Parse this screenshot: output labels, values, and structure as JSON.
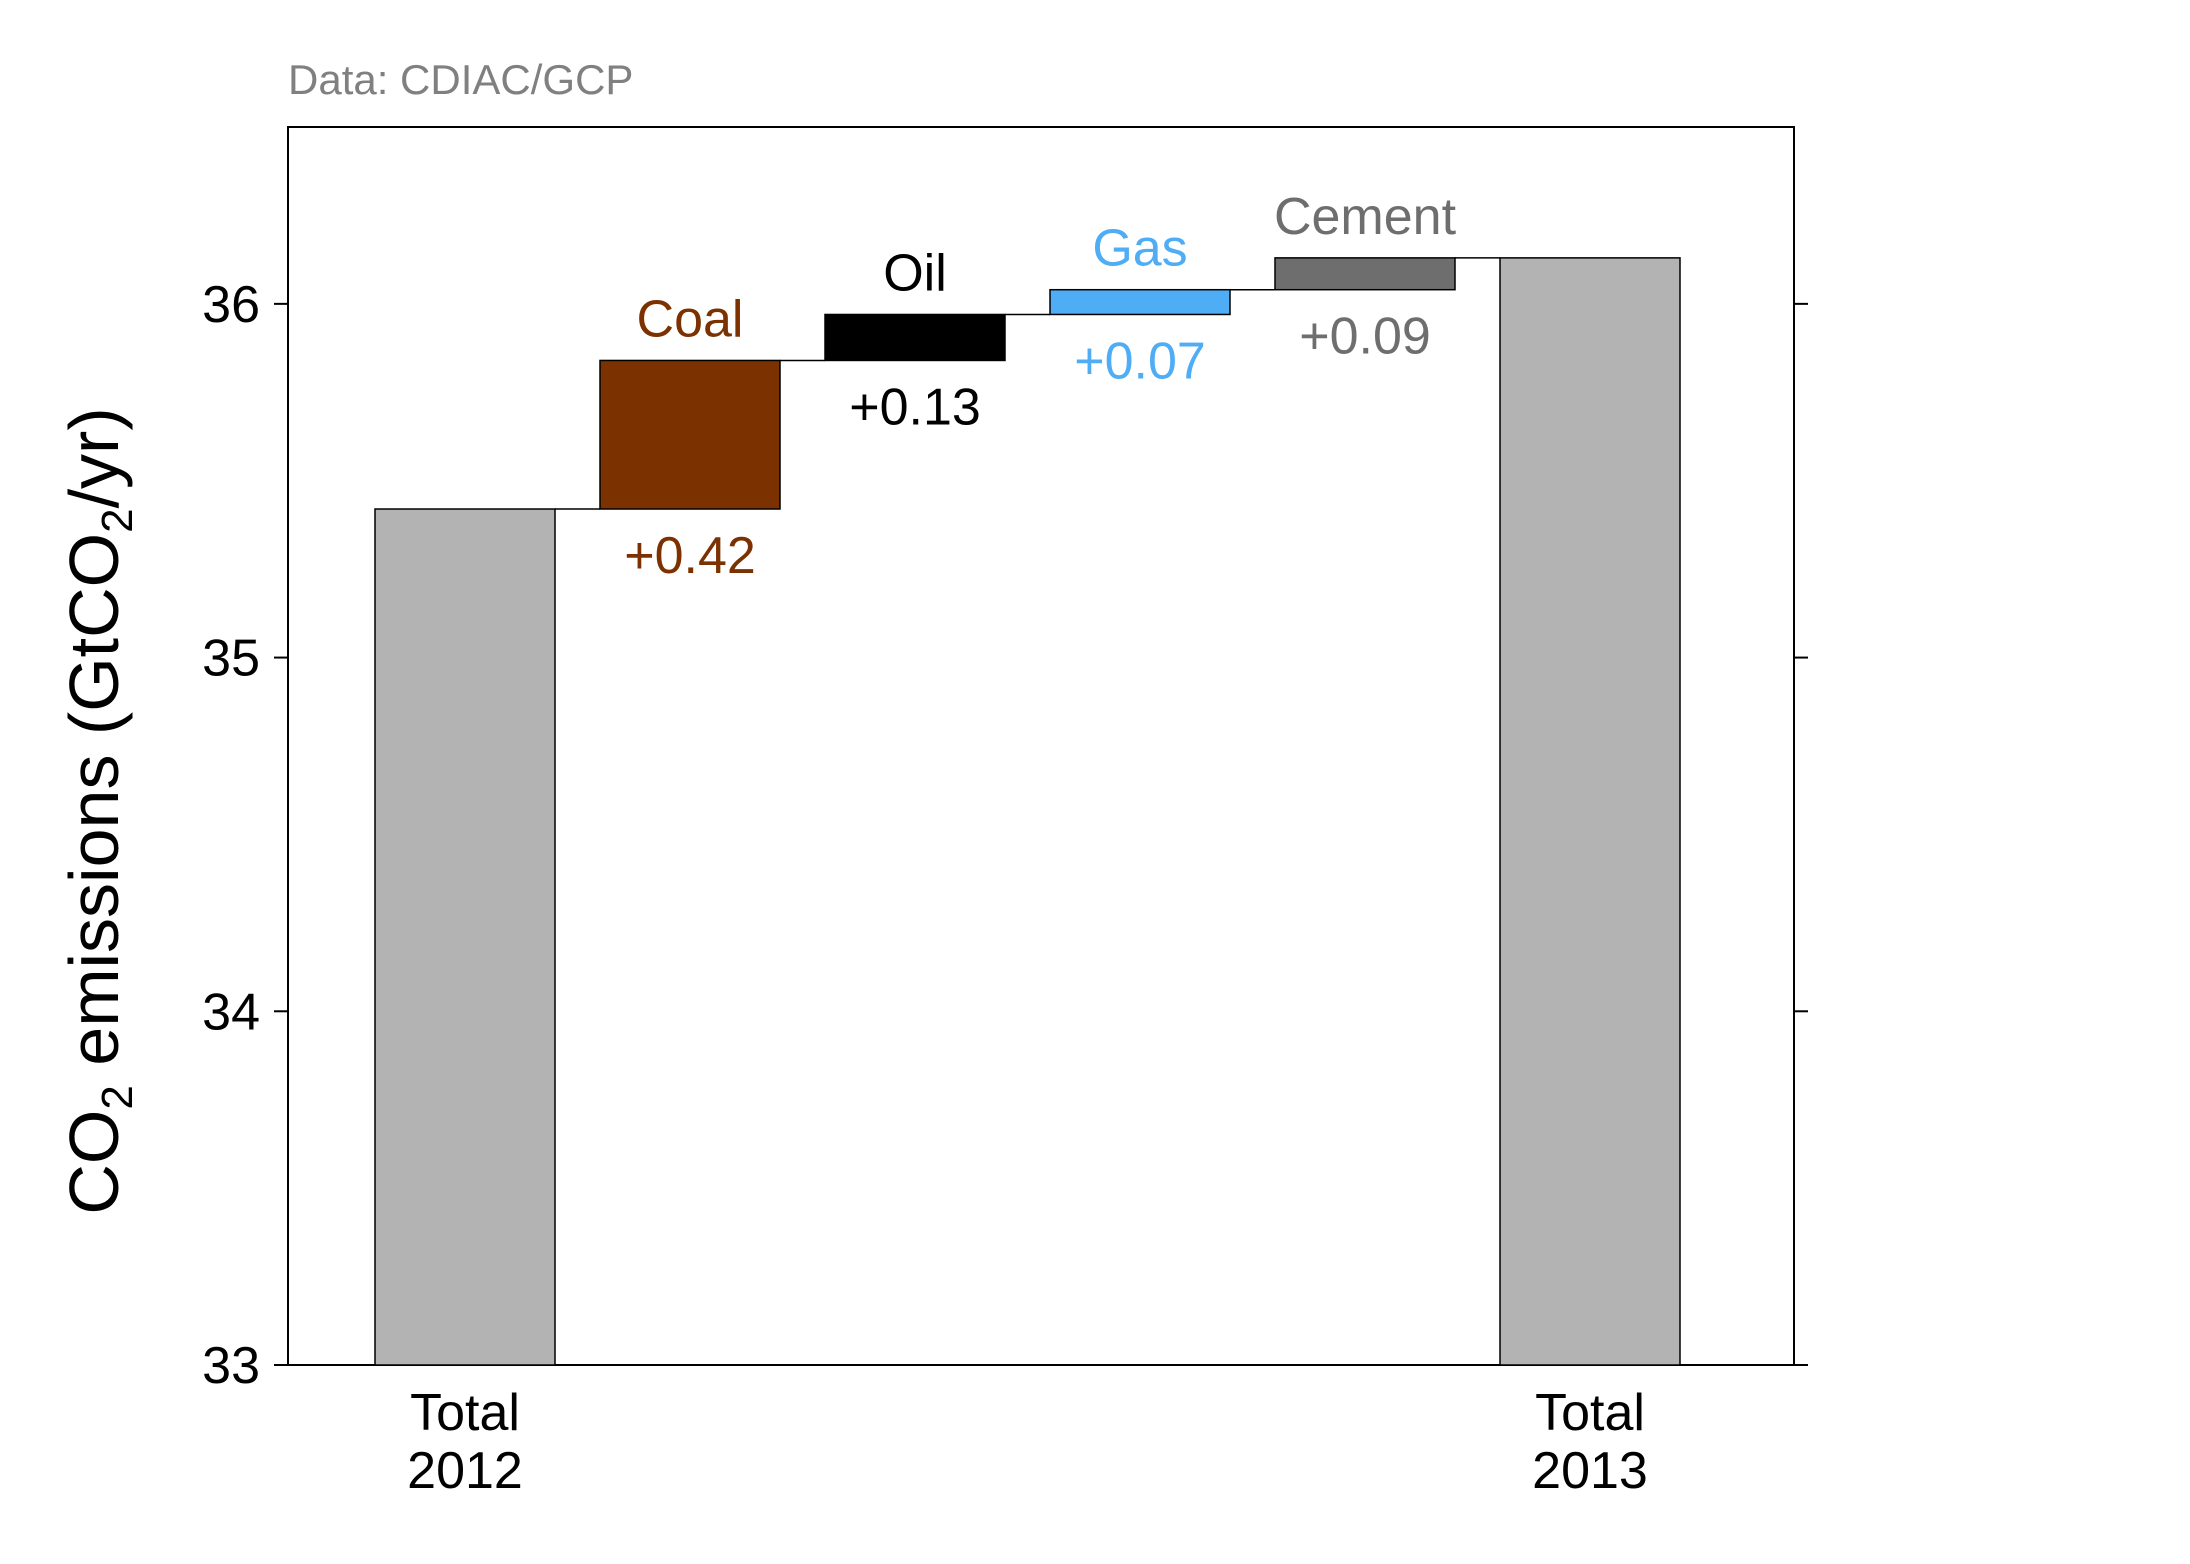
{
  "chart_data": {
    "type": "bar",
    "subtype": "waterfall",
    "source_note": "Data: CDIAC/GCP",
    "ylabel": {
      "prefix": "CO",
      "prefix_sub": "2",
      "middle": " emissions (GtCO",
      "middle_sub": "2",
      "suffix": "/yr)"
    },
    "ylim": [
      33,
      36.5
    ],
    "yticks": [
      33,
      34,
      35,
      36
    ],
    "grid": false,
    "legend": "none",
    "bars": [
      {
        "kind": "total",
        "label_lines": [
          "Total",
          "2012"
        ],
        "value": 35.42,
        "color": "#b3b3b3"
      },
      {
        "kind": "delta",
        "name": "Coal",
        "delta": 0.42,
        "delta_label": "+0.42",
        "color": "#7b3100"
      },
      {
        "kind": "delta",
        "name": "Oil",
        "delta": 0.13,
        "delta_label": "+0.13",
        "color": "#000000"
      },
      {
        "kind": "delta",
        "name": "Gas",
        "delta": 0.07,
        "delta_label": "+0.07",
        "color": "#4eadf5"
      },
      {
        "kind": "delta",
        "name": "Cement",
        "delta": 0.09,
        "delta_label": "+0.09",
        "color": "#6e6e6e"
      },
      {
        "kind": "total",
        "label_lines": [
          "Total",
          "2013"
        ],
        "value": 36.13,
        "color": "#b3b3b3"
      }
    ]
  }
}
